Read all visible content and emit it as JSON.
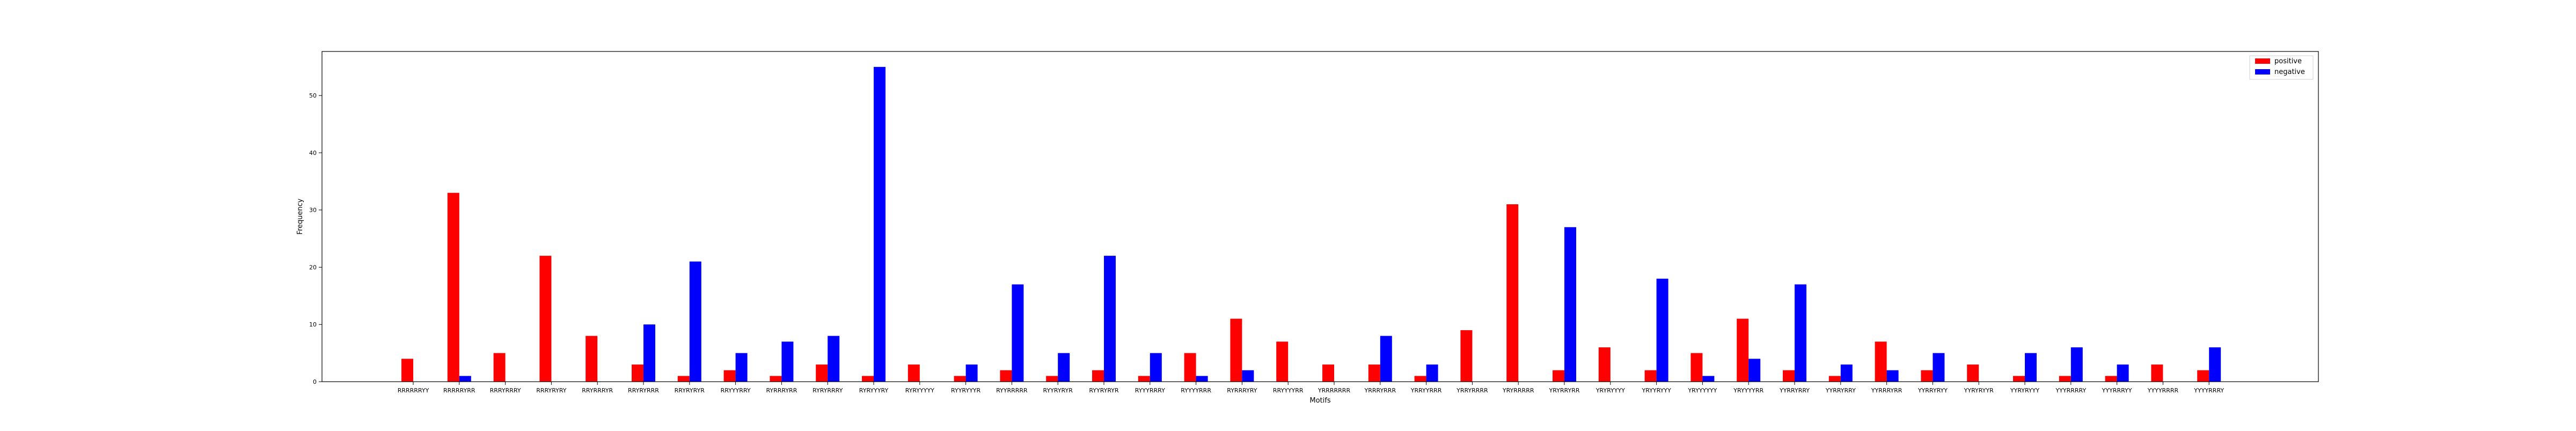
{
  "chart_data": {
    "type": "bar",
    "xlabel": "Motifs",
    "ylabel": "Frequency",
    "ylim": [
      0,
      57.7
    ],
    "yticks": [
      0,
      10,
      20,
      30,
      40,
      50
    ],
    "legend_position": "top-right",
    "grid": false,
    "categories": [
      "RRRRRRYY",
      "RRRRRYRR",
      "RRRYRRRY",
      "RRRYRYRY",
      "RRYRRRYR",
      "RRYRYRRR",
      "RRYRYRYR",
      "RRYYYRRY",
      "RYRRRYRR",
      "RYRYRRRY",
      "RYRYYYRY",
      "RYRYYYYY",
      "RYYRYYYR",
      "RYYRRRRR",
      "RYYRYRYR",
      "RYYRYRYR",
      "RYYYRRRY",
      "RYYYYRRR",
      "RYRRRYRY",
      "RRYYYYRR",
      "YRRRRRRR",
      "YRRRYRRR",
      "YRRYYRRR",
      "YRRYRRRR",
      "YRYRRRRR",
      "YRYRRYRR",
      "YRYRYYYY",
      "YRYYRYYY",
      "YRYYYYYY",
      "YRYYYYRR",
      "YYRRYRRY",
      "YYRRYRRY",
      "YYRRRYRR",
      "YYRRYRYY",
      "YYRYRYYR",
      "YYRYRYYY",
      "YYYRRRRY",
      "YYYRRRYY",
      "YYYYRRRR",
      "YYYYRRRY"
    ],
    "series": [
      {
        "name": "positive",
        "color": "#ff0000",
        "values": [
          4,
          33,
          5,
          22,
          8,
          3,
          1,
          2,
          1,
          3,
          1,
          3,
          1,
          2,
          1,
          2,
          1,
          5,
          11,
          7,
          3,
          3,
          1,
          9,
          31,
          2,
          6,
          2,
          5,
          11,
          2,
          1,
          7,
          2,
          3,
          1,
          1,
          1,
          3,
          2
        ]
      },
      {
        "name": "negative",
        "color": "#0000ff",
        "values": [
          0,
          1,
          0,
          0,
          0,
          10,
          21,
          5,
          7,
          8,
          55,
          0,
          3,
          17,
          5,
          22,
          5,
          1,
          2,
          0,
          0,
          8,
          3,
          0,
          0,
          27,
          0,
          18,
          1,
          4,
          17,
          3,
          2,
          5,
          0,
          5,
          6,
          3,
          0,
          6
        ]
      }
    ]
  }
}
